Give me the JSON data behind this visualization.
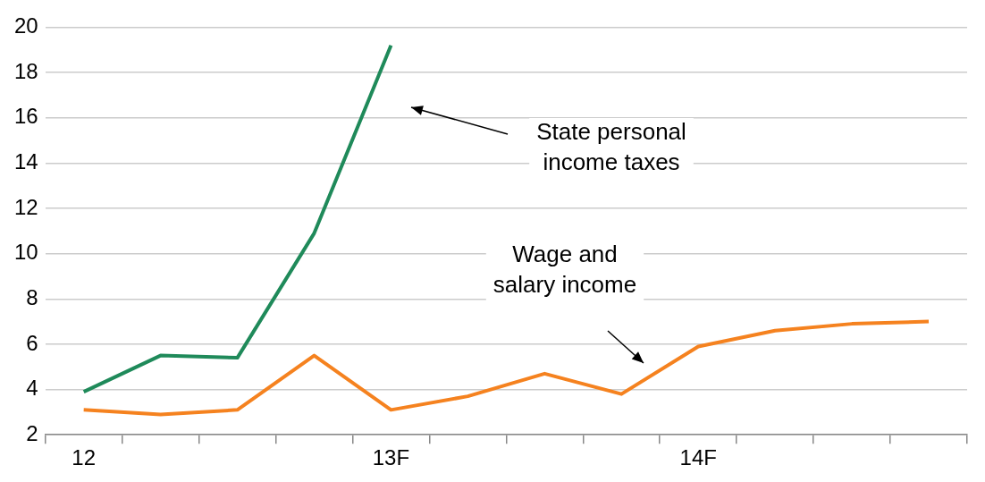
{
  "chart_data": {
    "type": "line",
    "categories": [
      "12",
      null,
      null,
      null,
      "13F",
      null,
      null,
      null,
      "14F",
      null,
      null,
      null
    ],
    "series": [
      {
        "color": "#1f8a5a",
        "values": [
          3.9,
          5.5,
          5.4,
          10.9,
          19.2,
          null,
          null,
          null,
          null,
          null,
          null,
          null
        ]
      },
      {
        "color": "#f5821f",
        "values": [
          3.1,
          2.9,
          3.1,
          5.5,
          3.1,
          3.7,
          4.7,
          3.8,
          5.9,
          6.6,
          6.9,
          7.0
        ]
      }
    ],
    "ylim": [
      2,
      20
    ],
    "yticks": [
      2,
      4,
      6,
      8,
      10,
      12,
      14,
      16,
      18,
      20
    ],
    "grid": "y",
    "legend": false,
    "marker": "none",
    "line_style": "solid",
    "annotations": [
      "State personal income taxes",
      "Wage and salary income"
    ]
  }
}
